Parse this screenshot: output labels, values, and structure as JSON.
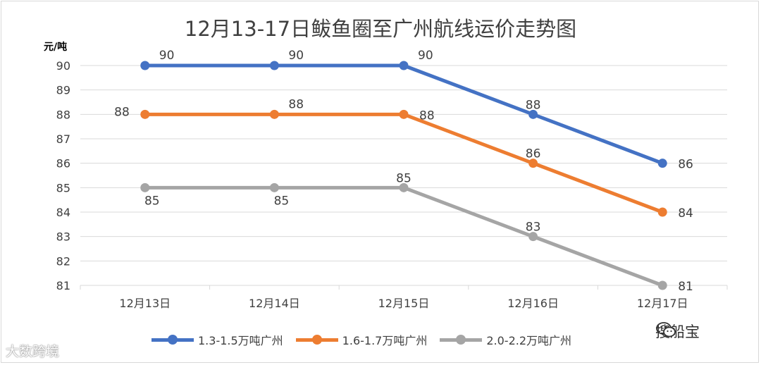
{
  "chart_data": {
    "type": "line",
    "title": "12月13-17日鲅鱼圈至广州航线运价走势图",
    "ylabel": "元/吨",
    "categories": [
      "12月13日",
      "12月14日",
      "12月15日",
      "12月16日",
      "12月17日"
    ],
    "y_ticks": [
      "81",
      "82",
      "83",
      "84",
      "85",
      "86",
      "87",
      "88",
      "89",
      "90"
    ],
    "ylim": [
      81,
      90
    ],
    "grid": true,
    "legend_position": "bottom",
    "series": [
      {
        "name": "1.3-1.5万吨广州",
        "color": "#4472c4",
        "values": [
          90,
          90,
          90,
          88,
          86
        ]
      },
      {
        "name": "1.6-1.7万吨广州",
        "color": "#ed7d31",
        "values": [
          88,
          88,
          88,
          86,
          84
        ]
      },
      {
        "name": "2.0-2.2万吨广州",
        "color": "#a5a5a5",
        "values": [
          85,
          85,
          85,
          83,
          81
        ]
      }
    ]
  },
  "watermarks": {
    "left": "大数跨境",
    "right": "搜船宝",
    "right_icon": "wechat-icon"
  }
}
